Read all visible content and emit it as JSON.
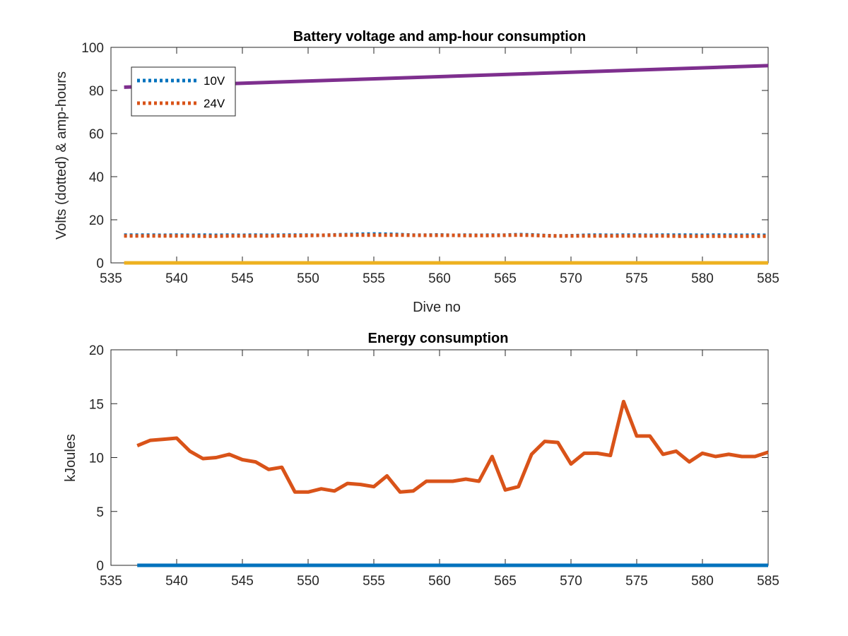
{
  "chart_data": [
    {
      "type": "line",
      "title": "Battery voltage and amp-hour consumption",
      "xlabel": "Dive no",
      "ylabel": "Volts (dotted) & amp-hours",
      "xlim": [
        535,
        585
      ],
      "ylim": [
        0,
        100
      ],
      "xticks": [
        535,
        540,
        545,
        550,
        555,
        560,
        565,
        570,
        575,
        580,
        585
      ],
      "yticks": [
        0,
        20,
        40,
        60,
        80,
        100
      ],
      "grid": false,
      "legend_position": "top-left",
      "series": [
        {
          "name": "10V",
          "style": "dotted",
          "color": "#0072BD",
          "x": [
            536,
            537,
            538,
            539,
            540,
            541,
            542,
            543,
            544,
            545,
            546,
            547,
            548,
            549,
            550,
            551,
            552,
            553,
            554,
            555,
            556,
            557,
            558,
            559,
            560,
            561,
            562,
            563,
            564,
            565,
            566,
            567,
            568,
            569,
            570,
            571,
            572,
            573,
            574,
            575,
            576,
            577,
            578,
            579,
            580,
            581,
            582,
            583,
            584,
            585
          ],
          "y": [
            12.9,
            12.9,
            12.9,
            12.8,
            12.9,
            12.8,
            12.9,
            12.8,
            12.9,
            12.8,
            12.9,
            12.8,
            12.9,
            12.9,
            12.9,
            12.8,
            13.0,
            13.1,
            13.3,
            13.4,
            13.3,
            13.1,
            12.9,
            12.9,
            13.0,
            12.8,
            12.9,
            12.8,
            12.9,
            12.9,
            13.1,
            13.0,
            12.7,
            12.5,
            12.6,
            12.8,
            12.9,
            12.8,
            12.9,
            12.9,
            12.8,
            12.9,
            12.9,
            12.9,
            12.8,
            12.9,
            12.9,
            12.8,
            12.9,
            12.8
          ]
        },
        {
          "name": "24V",
          "style": "dotted",
          "color": "#D95319",
          "x": [
            536,
            537,
            538,
            539,
            540,
            541,
            542,
            543,
            544,
            545,
            546,
            547,
            548,
            549,
            550,
            551,
            552,
            553,
            554,
            555,
            556,
            557,
            558,
            559,
            560,
            561,
            562,
            563,
            564,
            565,
            566,
            567,
            568,
            569,
            570,
            571,
            572,
            573,
            574,
            575,
            576,
            577,
            578,
            579,
            580,
            581,
            582,
            583,
            584,
            585
          ],
          "y": [
            12.5,
            12.5,
            12.5,
            12.5,
            12.5,
            12.5,
            12.4,
            12.4,
            12.5,
            12.5,
            12.5,
            12.5,
            12.6,
            12.6,
            12.7,
            12.8,
            12.9,
            12.9,
            12.9,
            12.9,
            12.9,
            12.9,
            12.8,
            12.8,
            12.8,
            12.8,
            12.7,
            12.7,
            12.7,
            12.8,
            12.9,
            12.8,
            12.6,
            12.5,
            12.5,
            12.5,
            12.5,
            12.5,
            12.5,
            12.5,
            12.5,
            12.5,
            12.4,
            12.4,
            12.4,
            12.4,
            12.4,
            12.4,
            12.4,
            12.4
          ]
        },
        {
          "style": "solid",
          "color": "#7E2F8E",
          "x": [
            536,
            585
          ],
          "y": [
            81.5,
            91.5
          ]
        },
        {
          "style": "solid",
          "color": "#EDB120",
          "x": [
            536,
            585
          ],
          "y": [
            0,
            0
          ]
        }
      ]
    },
    {
      "type": "line",
      "title": "Energy consumption",
      "xlabel": "",
      "ylabel": "kJoules",
      "xlim": [
        535,
        585
      ],
      "ylim": [
        0,
        20
      ],
      "xticks": [
        535,
        540,
        545,
        550,
        555,
        560,
        565,
        570,
        575,
        580,
        585
      ],
      "yticks": [
        0,
        5,
        10,
        15,
        20
      ],
      "grid": false,
      "series": [
        {
          "style": "solid",
          "color": "#0072BD",
          "x": [
            537,
            585
          ],
          "y": [
            0,
            0
          ]
        },
        {
          "style": "solid",
          "color": "#D95319",
          "x": [
            537,
            538,
            539,
            540,
            541,
            542,
            543,
            544,
            545,
            546,
            547,
            548,
            549,
            550,
            551,
            552,
            553,
            554,
            555,
            556,
            557,
            558,
            559,
            560,
            561,
            562,
            563,
            564,
            565,
            566,
            567,
            568,
            569,
            570,
            571,
            572,
            573,
            574,
            575,
            576,
            577,
            578,
            579,
            580,
            581,
            582,
            583,
            584,
            585
          ],
          "y": [
            11.1,
            11.6,
            11.7,
            11.8,
            10.6,
            9.9,
            10.0,
            10.3,
            9.8,
            9.6,
            8.9,
            9.1,
            6.8,
            6.8,
            7.1,
            6.9,
            7.6,
            7.5,
            7.3,
            8.3,
            6.8,
            6.9,
            7.8,
            7.8,
            7.8,
            8.0,
            7.8,
            10.1,
            7.0,
            7.3,
            10.3,
            11.5,
            11.4,
            9.4,
            10.4,
            10.4,
            10.2,
            15.2,
            12.0,
            12.0,
            10.3,
            10.6,
            9.6,
            10.4,
            10.1,
            10.3,
            10.1,
            10.1,
            10.5
          ]
        }
      ]
    }
  ]
}
